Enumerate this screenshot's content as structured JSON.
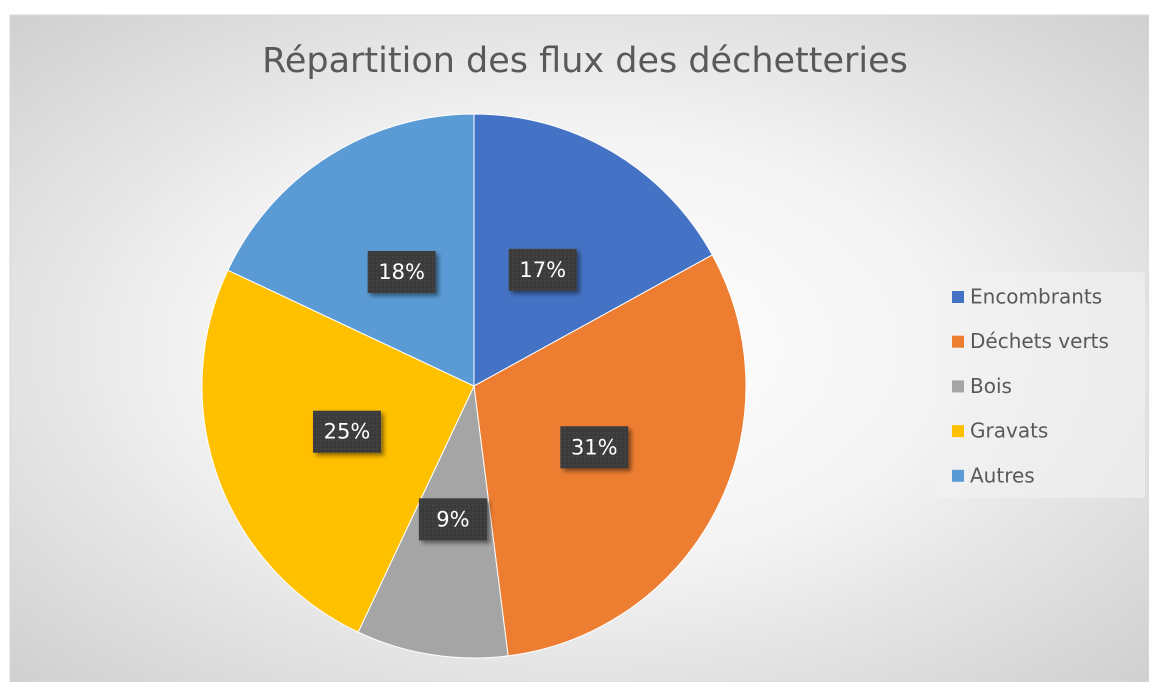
{
  "chart_data": {
    "type": "pie",
    "title": "Répartition des flux des déchetteries",
    "categories": [
      "Encombrants",
      "Déchets verts",
      "Bois",
      "Gravats",
      "Autres"
    ],
    "values": [
      17,
      31,
      9,
      25,
      18
    ],
    "value_labels": [
      "17%",
      "31%",
      "9%",
      "25%",
      "18%"
    ],
    "colors": [
      "#4472c4",
      "#ed7d31",
      "#a5a5a5",
      "#ffc000",
      "#5b9bd5"
    ],
    "legend": "right"
  }
}
